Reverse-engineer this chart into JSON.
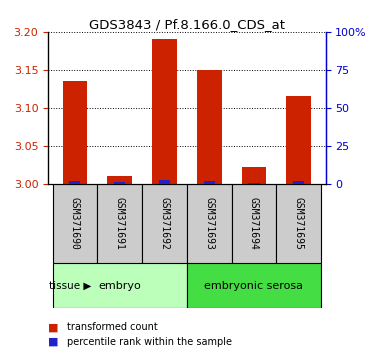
{
  "title": "GDS3843 / Pf.8.166.0_CDS_at",
  "samples": [
    "GSM371690",
    "GSM371691",
    "GSM371692",
    "GSM371693",
    "GSM371694",
    "GSM371695"
  ],
  "red_values": [
    3.135,
    3.01,
    3.19,
    3.15,
    3.022,
    3.115
  ],
  "blue_values": [
    1.5,
    1.0,
    2.5,
    2.0,
    0.8,
    2.0
  ],
  "ylim_left": [
    3.0,
    3.2
  ],
  "ylim_right": [
    0,
    100
  ],
  "yticks_left": [
    3.0,
    3.05,
    3.1,
    3.15,
    3.2
  ],
  "yticks_right": [
    0,
    25,
    50,
    75,
    100
  ],
  "ytick_labels_right": [
    "0",
    "25",
    "50",
    "75",
    "100%"
  ],
  "tissue_groups": [
    {
      "label": "embryo",
      "indices": [
        0,
        1,
        2
      ],
      "color": "#bbffbb"
    },
    {
      "label": "embryonic serosa",
      "indices": [
        3,
        4,
        5
      ],
      "color": "#44dd44"
    }
  ],
  "legend_items": [
    {
      "label": "transformed count",
      "color": "#cc2200"
    },
    {
      "label": "percentile rank within the sample",
      "color": "#2222cc"
    }
  ],
  "bar_width": 0.55,
  "red_color": "#cc2200",
  "blue_color": "#2222cc",
  "axis_color_left": "#cc2200",
  "axis_color_right": "#0000cc",
  "sample_box_color": "#cccccc",
  "fig_width": 3.7,
  "fig_height": 3.54,
  "dpi": 100
}
